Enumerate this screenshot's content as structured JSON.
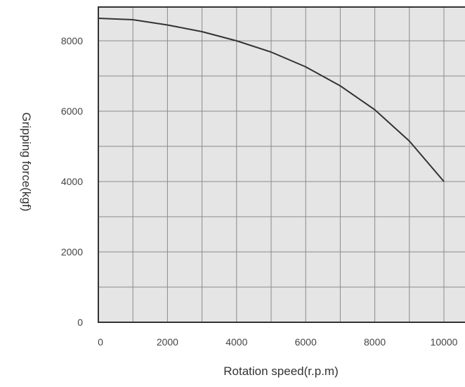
{
  "chart_data": {
    "type": "line",
    "title": "",
    "xlabel": "Rotation speed(r.p.m)",
    "ylabel": "Gripping force(kgf)",
    "xlim": [
      0,
      10500
    ],
    "ylim": [
      0,
      9000
    ],
    "x_ticks": [
      0,
      2000,
      4000,
      6000,
      8000,
      10000
    ],
    "x_tick_labels": [
      "0",
      "2000",
      "4000",
      "6000",
      "8000",
      "10000"
    ],
    "y_ticks": [
      0,
      2000,
      4000,
      6000,
      8000
    ],
    "y_tick_labels": [
      "0",
      "2000",
      "4000",
      "6000",
      "8000"
    ],
    "x_grid_step": 1000,
    "y_grid_step": 1000,
    "grid": true,
    "series": [
      {
        "x": [
          0,
          1000,
          2000,
          3000,
          4000,
          5000,
          6000,
          7000,
          8000,
          9000,
          10000
        ],
        "values": [
          8640,
          8600,
          8450,
          8260,
          8000,
          7680,
          7260,
          6720,
          6040,
          5150,
          4000
        ]
      }
    ],
    "colors": {
      "plot_background": "#e5e5e5",
      "grid": "#8a8a8a",
      "line": "#333333",
      "frame": "#333333"
    }
  }
}
